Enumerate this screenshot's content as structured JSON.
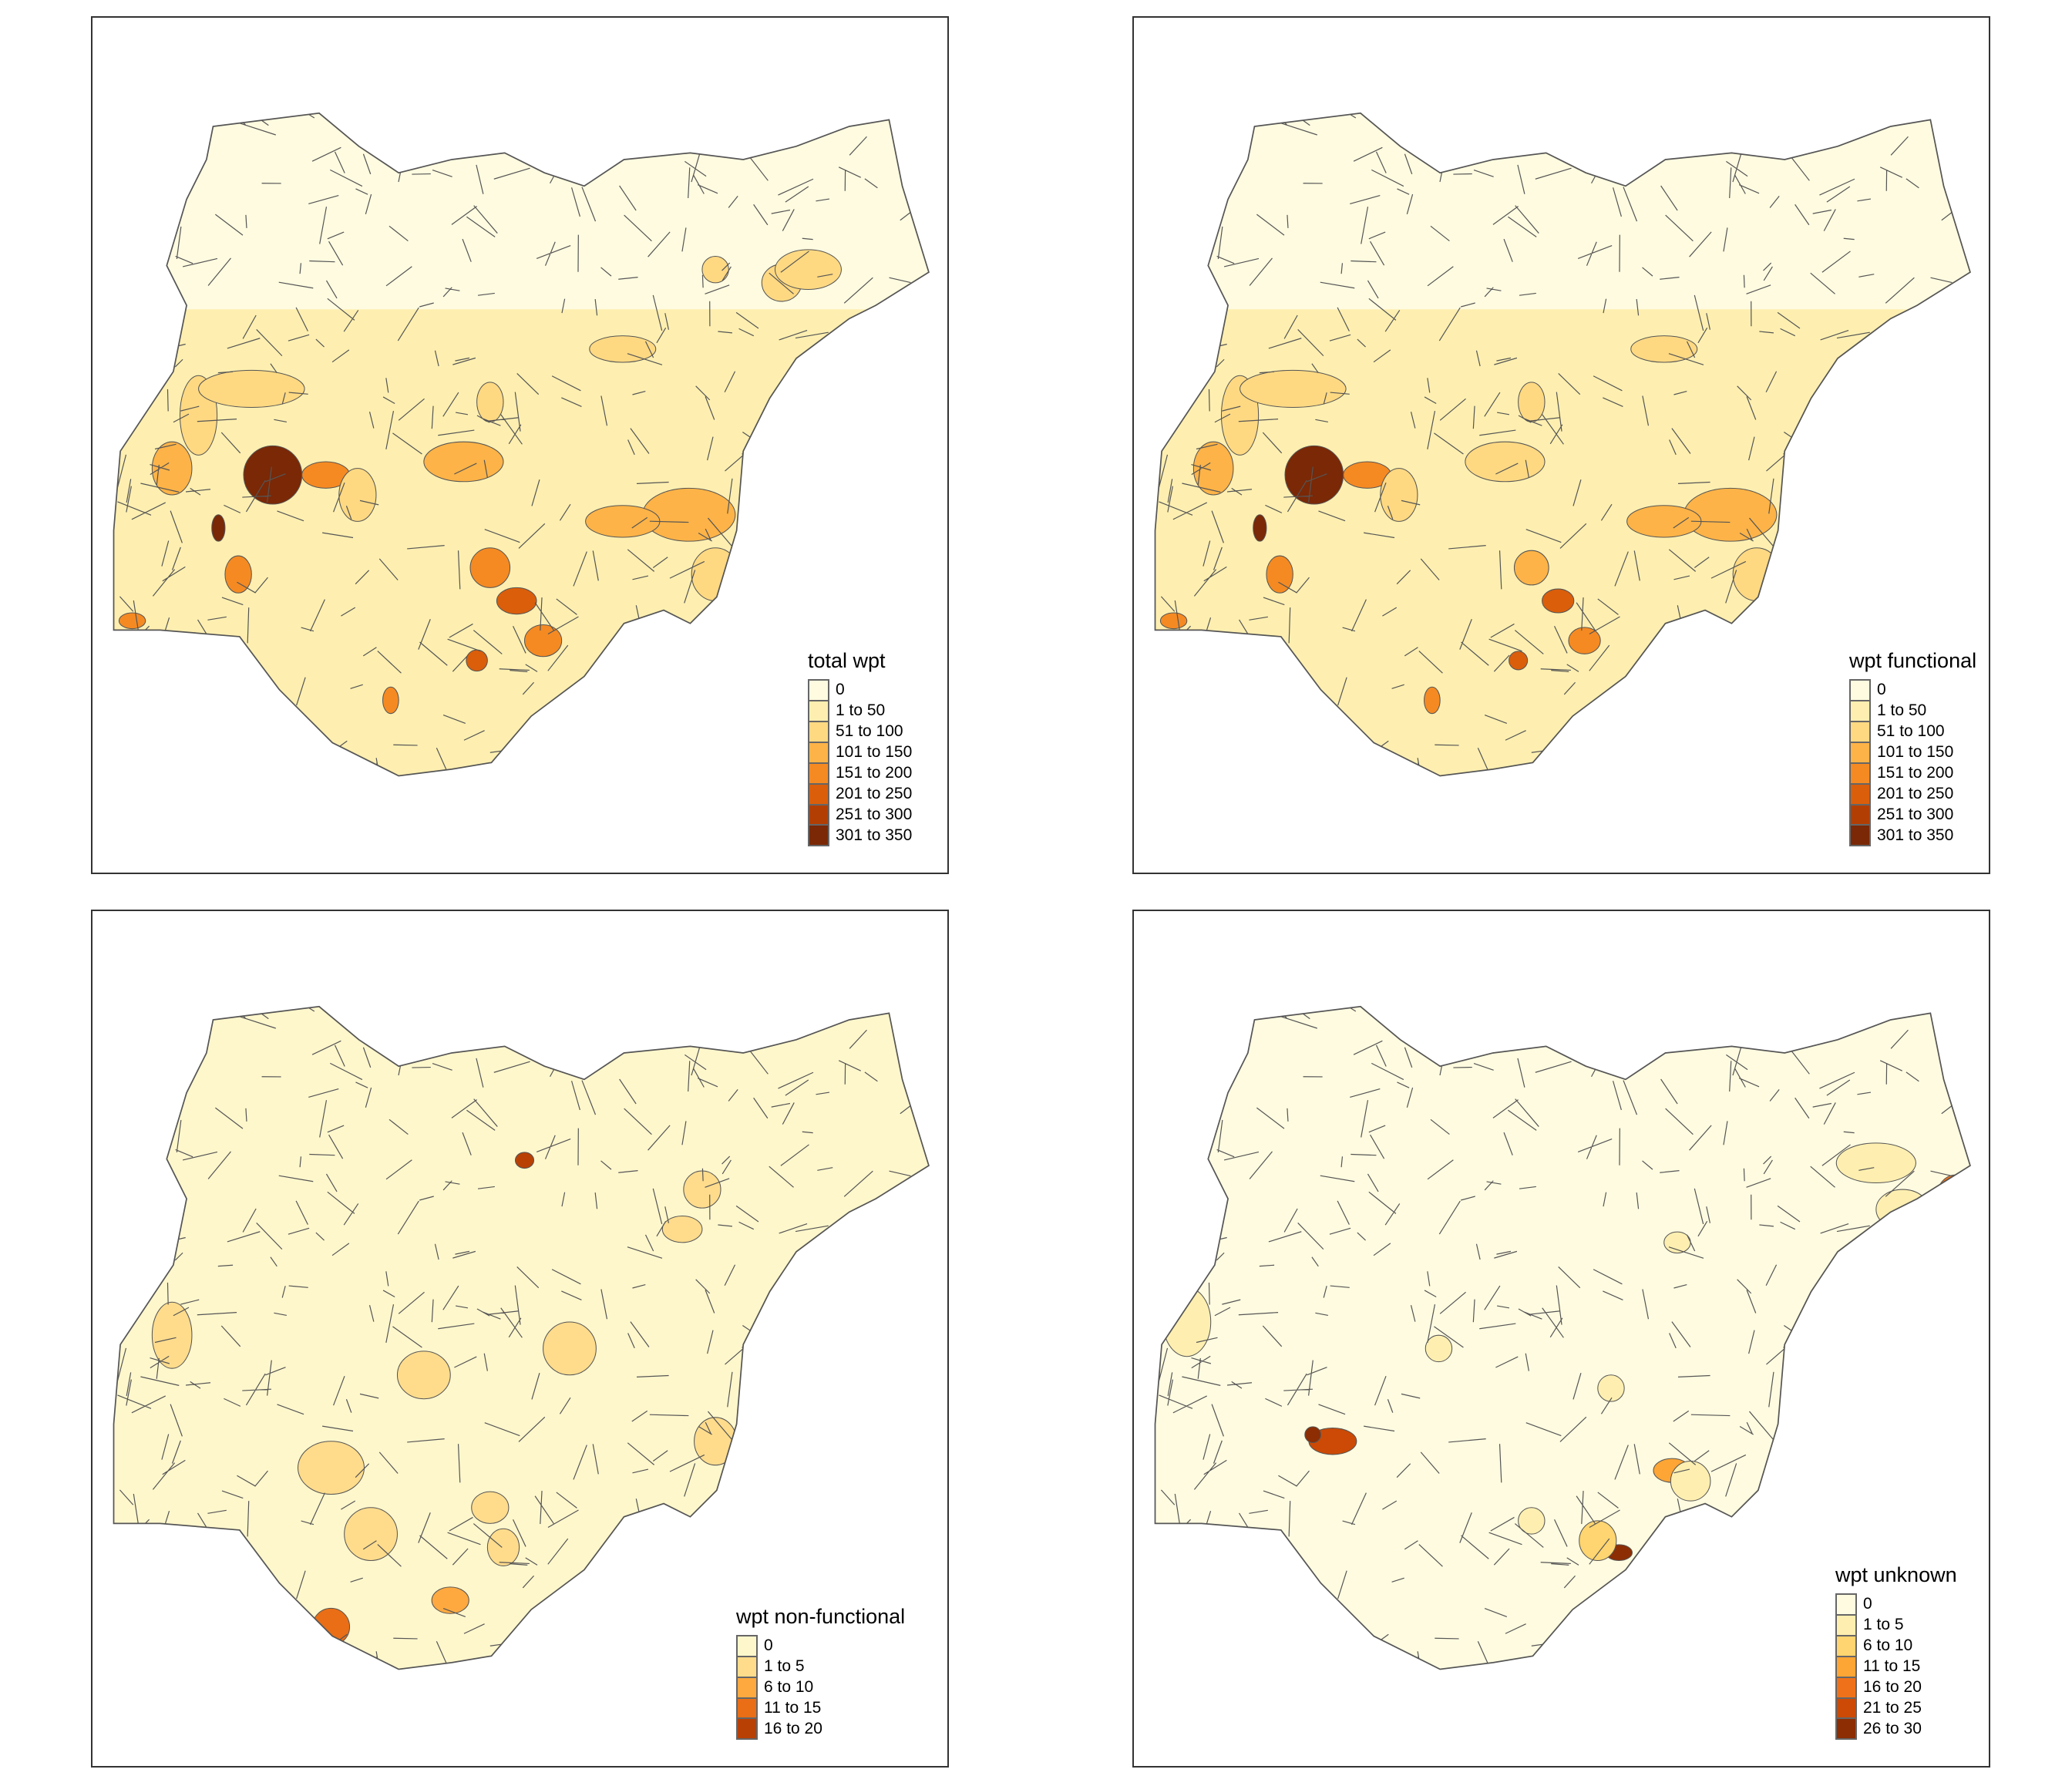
{
  "maps": [
    {
      "id": "total",
      "legend_title": "total wpt",
      "classes": [
        "0",
        "1 to 50",
        "51 to 100",
        "101 to 150",
        "151 to 200",
        "201 to 250",
        "251 to 300",
        "301 to 350"
      ],
      "colors": [
        "#FFFBE0",
        "#FEEFB0",
        "#FED982",
        "#FDB347",
        "#F58A22",
        "#DB5E0B",
        "#B33E04",
        "#7A2806"
      ]
    },
    {
      "id": "functional",
      "legend_title": "wpt functional",
      "classes": [
        "0",
        "1 to 50",
        "51 to 100",
        "101 to 150",
        "151 to 200",
        "201 to 250",
        "251 to 300",
        "301 to 350"
      ],
      "colors": [
        "#FFFBE0",
        "#FEEFB0",
        "#FED982",
        "#FDB347",
        "#F58A22",
        "#DB5E0B",
        "#B33E04",
        "#7A2806"
      ]
    },
    {
      "id": "nonfunctional",
      "legend_title": "wpt non-functional",
      "classes": [
        "0",
        "1 to 5",
        "6 to 10",
        "11 to 15",
        "16 to 20"
      ],
      "colors": [
        "#FFF7CC",
        "#FEDC8C",
        "#FDA940",
        "#EA6E15",
        "#B94004"
      ]
    },
    {
      "id": "unknown",
      "legend_title": "wpt unknown",
      "classes": [
        "0",
        "1 to 5",
        "6 to 10",
        "11 to 15",
        "16 to 20",
        "21 to 25",
        "26 to 30"
      ],
      "colors": [
        "#FFFBE0",
        "#FEEFB0",
        "#FED570",
        "#FDA535",
        "#EF721A",
        "#CC4A05",
        "#8C2D04"
      ]
    }
  ],
  "boundary_color": "#555555"
}
